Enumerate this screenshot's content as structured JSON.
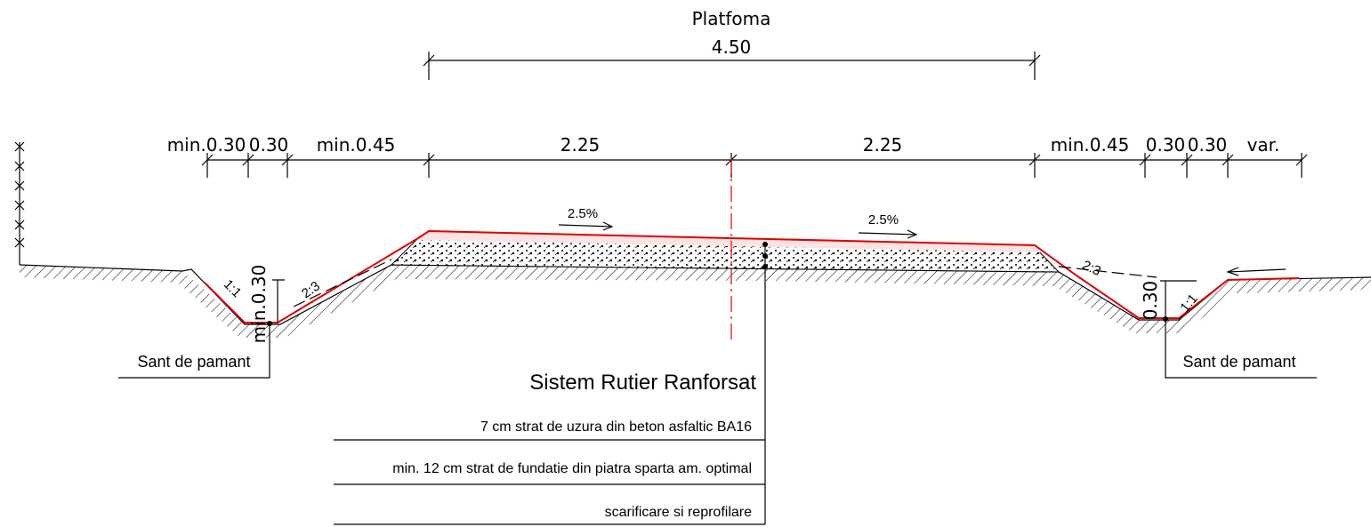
{
  "platform": {
    "label": "Platfoma",
    "width": "4.50"
  },
  "dimensions": [
    "min.0.30",
    "0.30",
    "min.0.45",
    "2.25",
    "2.25",
    "min.0.45",
    "0.30",
    "0.30",
    "var."
  ],
  "slopes": {
    "cross": [
      "2.5%",
      "2.5%"
    ],
    "embankment": [
      "2:3",
      "2:3"
    ],
    "ditch": [
      "1:1",
      "1:1"
    ]
  },
  "ditch_depth": [
    "min.0.30",
    "0.30"
  ],
  "ditch_labels": [
    "Sant de pamant",
    "Sant de pamant"
  ],
  "structure": {
    "title": "Sistem Rutier Ranforsat",
    "layers": [
      "7 cm strat de uzura din beton asfaltic BA16",
      "min. 12 cm strat de fundatie din piatra sparta am. optimal",
      "scarificare si reprofilare"
    ]
  }
}
